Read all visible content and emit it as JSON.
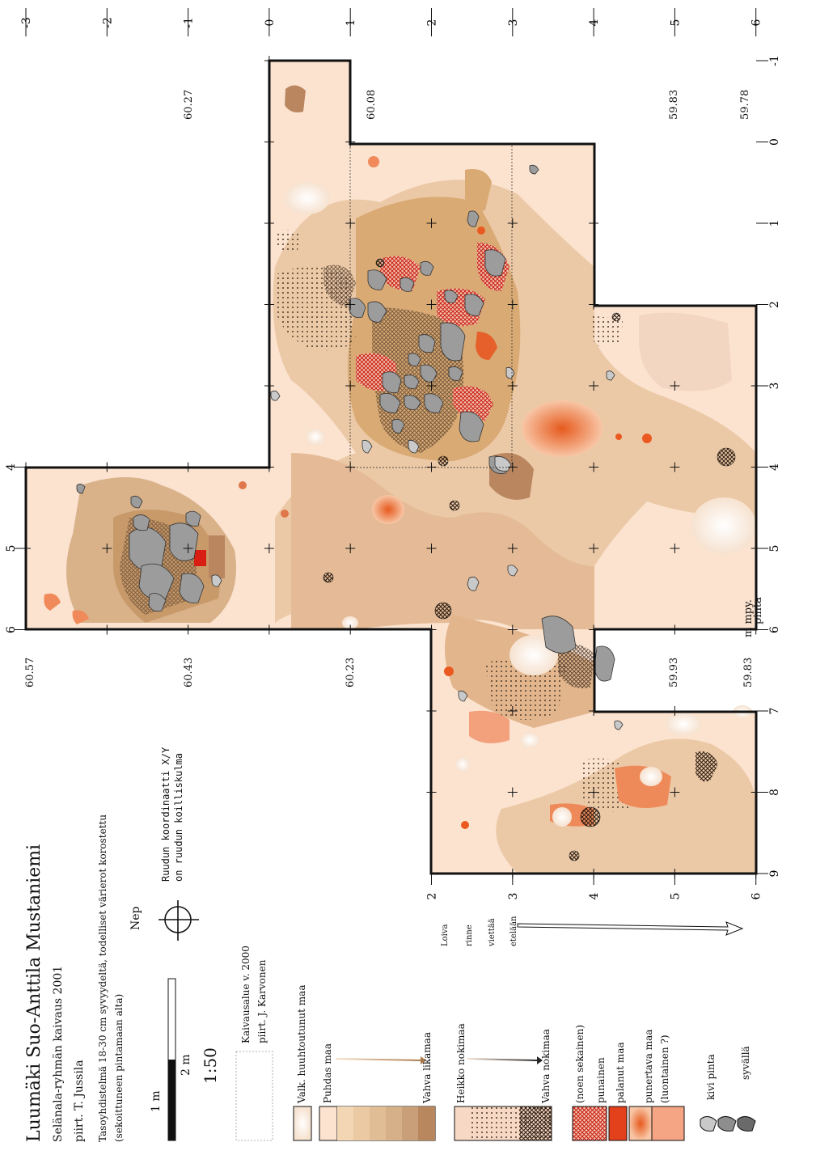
{
  "header": {
    "title": "Luumäki Suo-Anttila Mustaniemi",
    "line2": "Selänala-ryhmän kaivaus 2001",
    "line3": "piirt. T. Jussila",
    "line4": "Tasoyhdistelmä 18-30 cm syvyydeltä, todelliset värierot korostettu",
    "line5": "(sekoittuneen pintamaan alta)"
  },
  "scale": {
    "label_1m": "1 m",
    "label_2m": "2 m",
    "ratio": "1:50"
  },
  "north": "Nep",
  "grid_note": [
    "Ruudun koordinaatti X/Y",
    "on ruudun koilliskulma"
  ],
  "area_note": [
    "Kaivausalue v. 2000",
    "piirt. J. Karvonen"
  ],
  "slope": [
    "Loiva",
    "rinne",
    "viettää",
    "etelään"
  ],
  "legend": {
    "weathered": "Valk. huuhtoutunut maa",
    "clean": "Puhdas maa",
    "dirty": "Vahva likamaa",
    "weak_soot": "Heikko nokimaa",
    "strong_soot": "Vahva nokimaa",
    "red1": "(noen sekainen)",
    "red2": "punainen",
    "red3": "palanut maa",
    "red4": "punertava maa",
    "red5": "(luontainen ?)",
    "stone1": "kivi pinta",
    "stone2": "syvällä"
  },
  "x_top": [
    "-3",
    "-2",
    "-1",
    "0",
    "1",
    "2",
    "3",
    "4",
    "5",
    "6"
  ],
  "y_right": [
    "-1",
    "0",
    "1",
    "2",
    "3",
    "4",
    "5",
    "6",
    "7",
    "8",
    "9"
  ],
  "y_left": [
    "4",
    "5",
    "6"
  ],
  "x_bottom": [
    "2",
    "3",
    "4",
    "5",
    "6"
  ],
  "elevations": {
    "e1": "60.57",
    "e2": "60.43",
    "e3": "60.23",
    "e4": "59.93",
    "e5": "59.83",
    "e6": "60.27",
    "e7": "60.08",
    "e8": "59.83",
    "e9": "59.78"
  },
  "mpy": [
    "m mpy.",
    "pinta"
  ],
  "colors": {
    "clean": "#fbe3d0",
    "dirty_light": "#ecc9a6",
    "dirty": "#d9aa74",
    "dirty_dark": "#c08d63",
    "red": "#e1401e",
    "orange": "#f2a07a",
    "stone": "#9c9c9c"
  }
}
